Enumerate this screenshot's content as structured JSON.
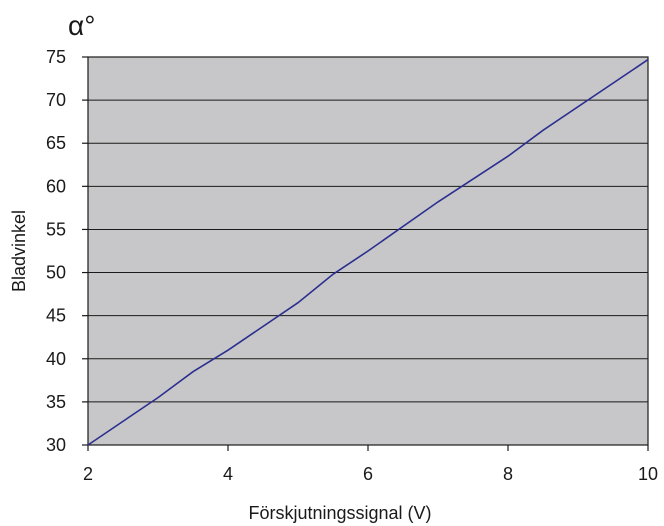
{
  "chart_data": {
    "type": "line",
    "title": "",
    "unit_label": "α°",
    "xlabel": "Förskjutningssignal (V)",
    "ylabel": "Bladvinkel",
    "xlim": [
      2,
      10
    ],
    "ylim": [
      30,
      75
    ],
    "x_ticks": [
      2,
      4,
      6,
      8,
      10
    ],
    "y_ticks": [
      30,
      35,
      40,
      45,
      50,
      55,
      60,
      65,
      70,
      75
    ],
    "grid": "horizontal",
    "legend": "none",
    "series": [
      {
        "x": [
          2,
          3,
          3.5,
          4,
          5,
          5.5,
          6,
          7,
          8,
          8.5,
          10
        ],
        "y": [
          30,
          35.5,
          38.5,
          41,
          46.5,
          49.8,
          52.5,
          58.2,
          63.5,
          66.5,
          74.7
        ]
      }
    ]
  },
  "colors": {
    "plot_background": "#c7c7c9",
    "line": "#2b2f8f",
    "gridline": "#1a1a1a",
    "frame": "#1a1a1a"
  }
}
